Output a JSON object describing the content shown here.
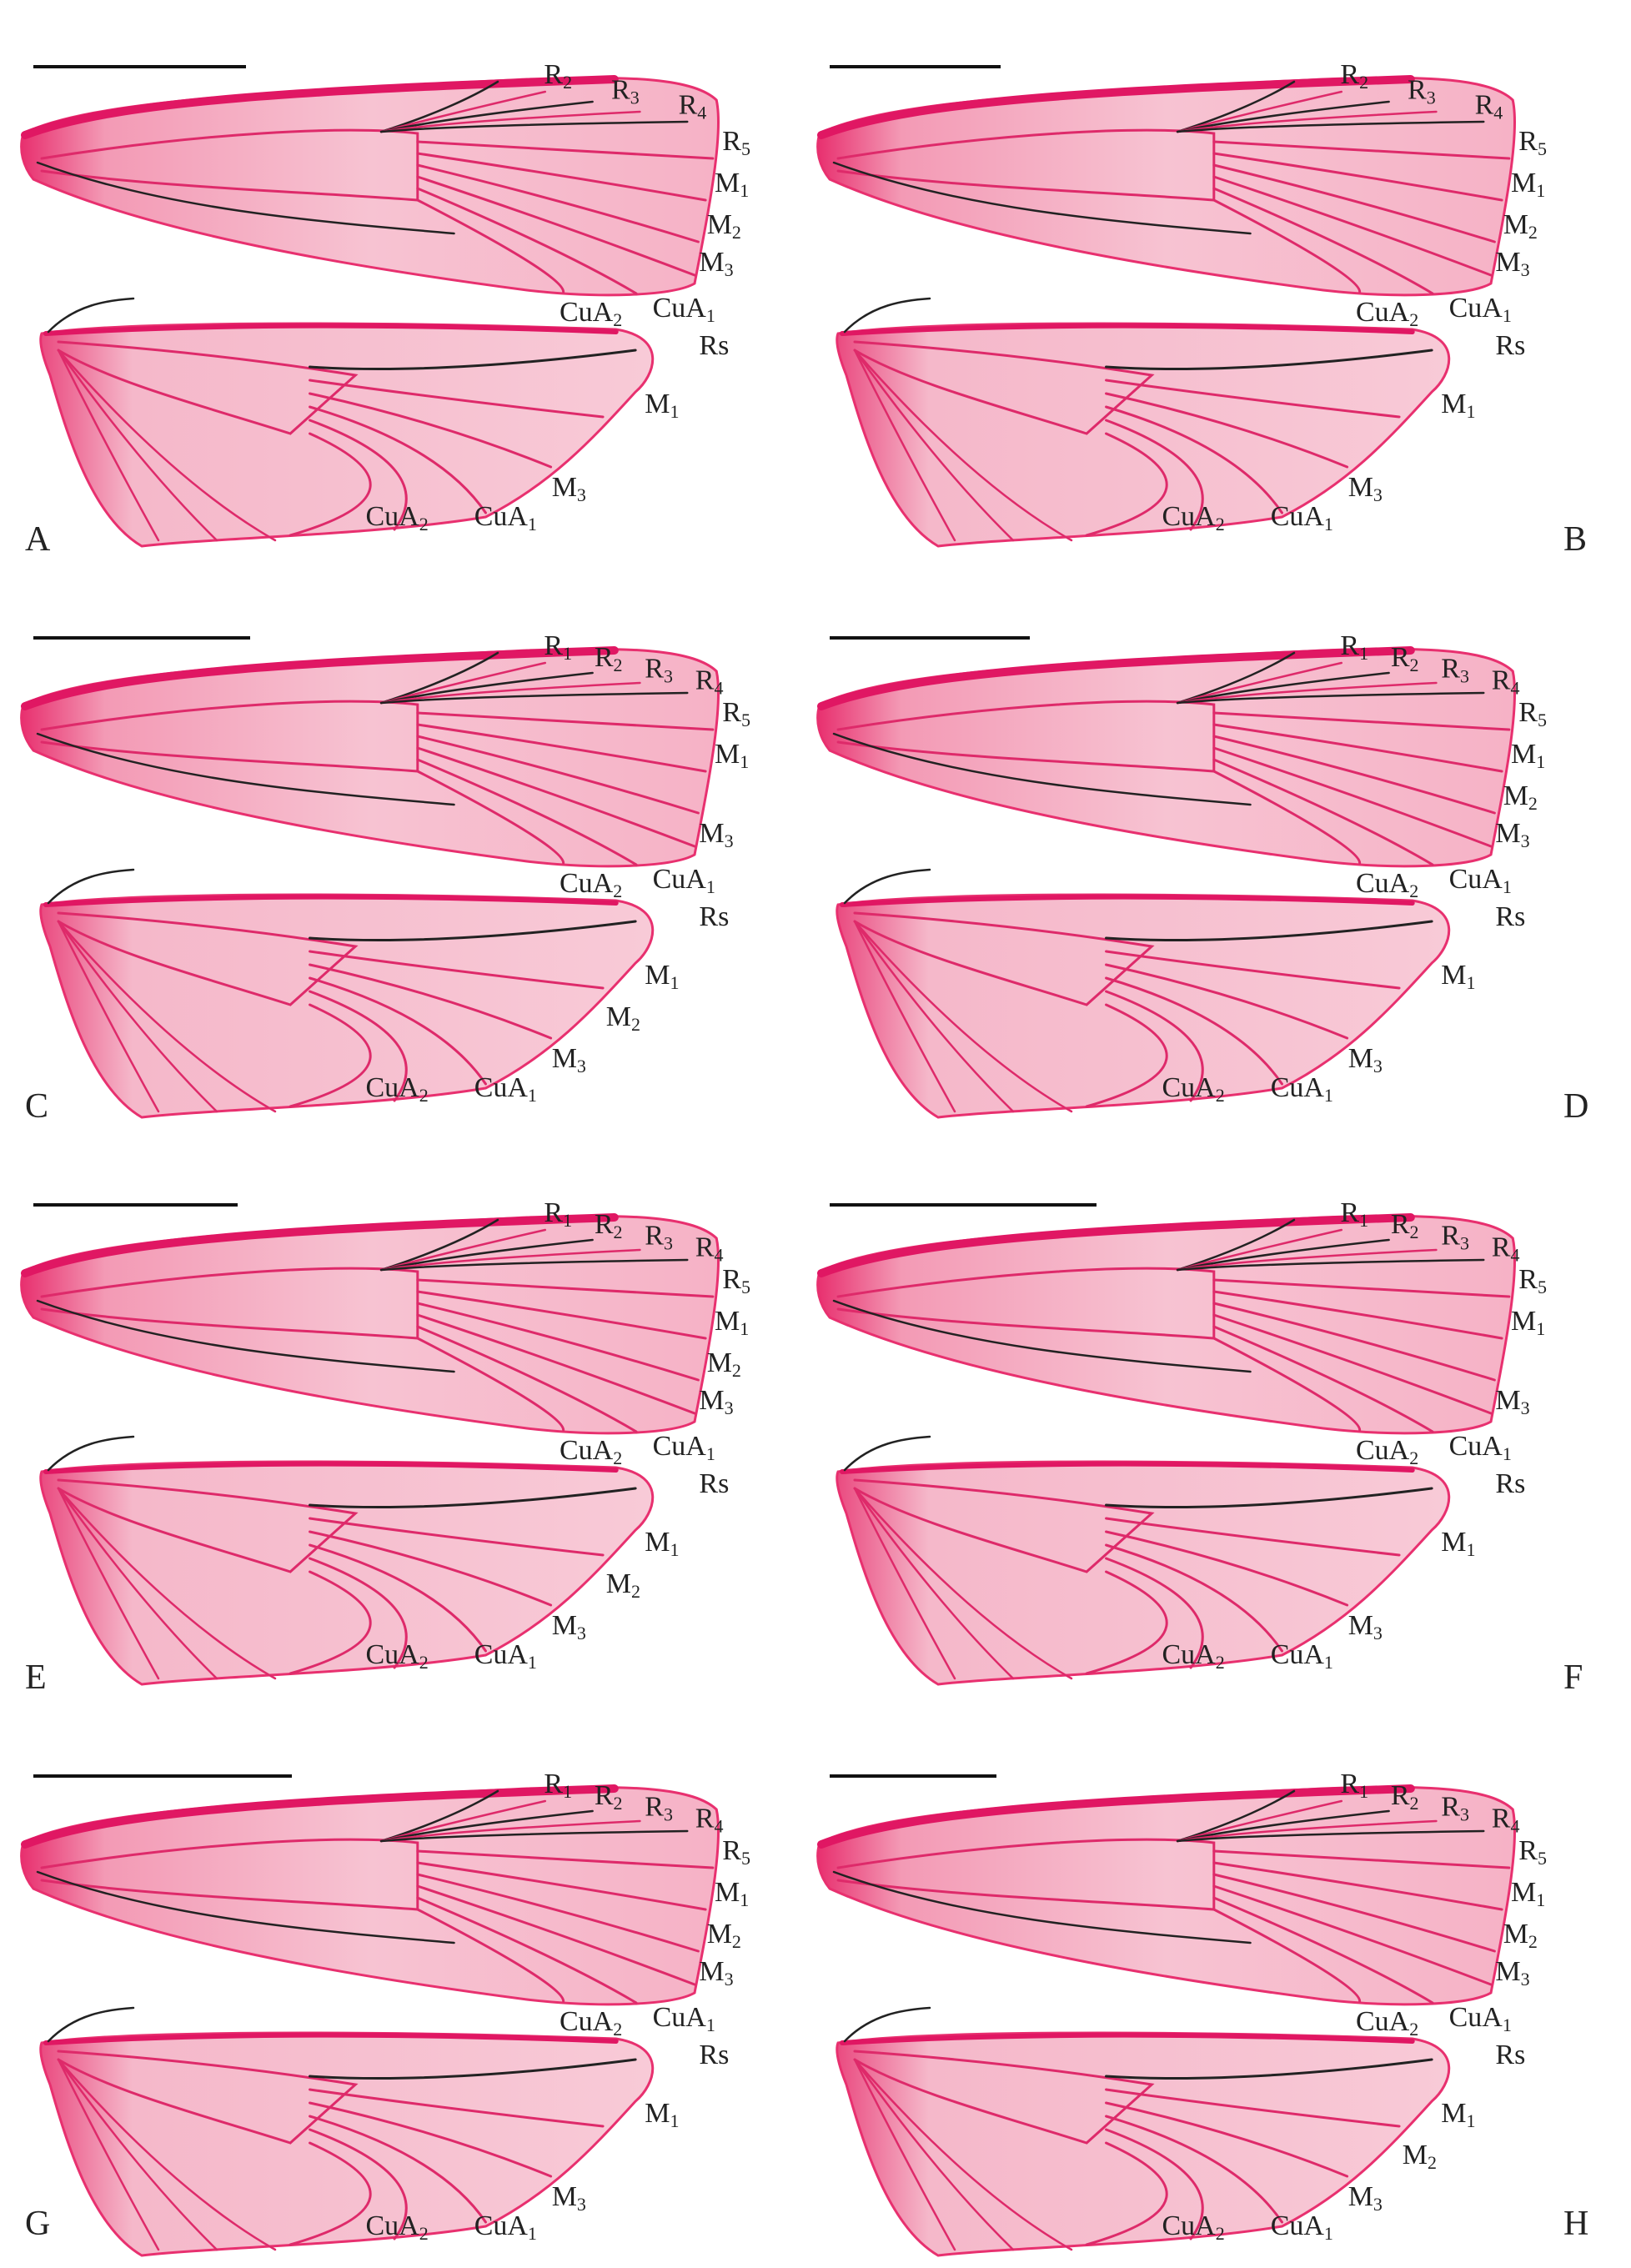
{
  "colors": {
    "wing_fill": "#f7bccd",
    "wing_pale": "#eceeea",
    "wing_edge": "#e8306f",
    "costa": "#e01763",
    "vein_pink": "#de2a6a",
    "vein_dark": "#222222",
    "scale_bar": "#111111",
    "label_text": "#222222"
  },
  "panels": [
    {
      "letter": "A",
      "fore": [
        "R2",
        "R3",
        "R4",
        "R5",
        "M1",
        "M2",
        "M3",
        "CuA2",
        "CuA1"
      ],
      "hind": [
        "Rs",
        "M1",
        "M3",
        "CuA2",
        "CuA1"
      ]
    },
    {
      "letter": "B",
      "fore": [
        "R2",
        "R3",
        "R4",
        "R5",
        "M1",
        "M2",
        "M3",
        "CuA2",
        "CuA1"
      ],
      "hind": [
        "Rs",
        "M1",
        "M3",
        "CuA2",
        "CuA1"
      ]
    },
    {
      "letter": "C",
      "fore": [
        "R1",
        "R2",
        "R3",
        "R4",
        "R5",
        "M1",
        "M3",
        "CuA1",
        "CuA2"
      ],
      "hind": [
        "Rs",
        "M1",
        "M2",
        "M3",
        "CuA2",
        "CuA1"
      ]
    },
    {
      "letter": "D",
      "fore": [
        "R1",
        "R2",
        "R3",
        "R4",
        "R5",
        "M1",
        "M2",
        "M3",
        "CuA2",
        "CuA1"
      ],
      "hind": [
        "Rs",
        "M1",
        "M3",
        "CuA2",
        "CuA1"
      ]
    },
    {
      "letter": "E",
      "fore": [
        "R1",
        "R2",
        "R3",
        "R4",
        "R5",
        "M1",
        "M2",
        "M3",
        "CuA2",
        "CuA1"
      ],
      "hind": [
        "Rs",
        "M1",
        "M2",
        "M3",
        "CuA2",
        "CuA1"
      ]
    },
    {
      "letter": "F",
      "fore": [
        "R1",
        "R2",
        "R3",
        "R4",
        "R5",
        "M1",
        "M3",
        "CuA1",
        "CuA2"
      ],
      "hind": [
        "Rs",
        "M1",
        "M3",
        "CuA2",
        "CuA1"
      ]
    },
    {
      "letter": "G",
      "fore": [
        "R1",
        "R2",
        "R3",
        "R4",
        "R5",
        "M1",
        "M2",
        "M3",
        "CuA2",
        "CuA1"
      ],
      "hind": [
        "Rs",
        "M1",
        "M3",
        "CuA2",
        "CuA1"
      ]
    },
    {
      "letter": "H",
      "fore": [
        "R1",
        "R2",
        "R3",
        "R4",
        "R5",
        "M1",
        "M2",
        "M3",
        "CuA2",
        "CuA1"
      ],
      "hind": [
        "Rs",
        "M1",
        "M2",
        "M3",
        "CuA2",
        "CuA1"
      ]
    }
  ]
}
